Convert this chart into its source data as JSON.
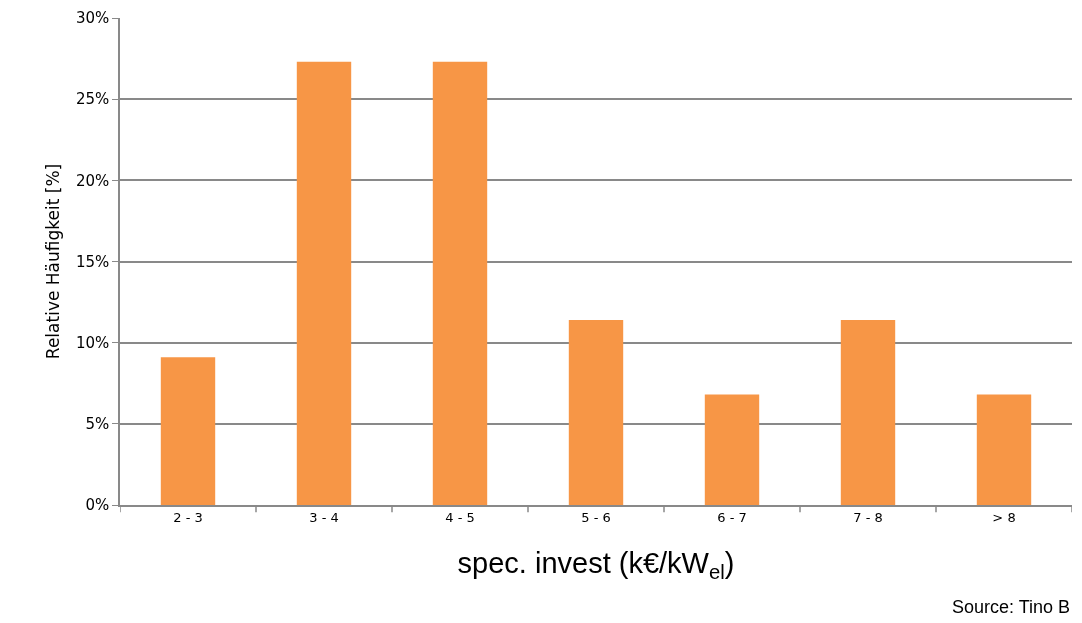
{
  "chart_data": {
    "type": "bar",
    "xlabel": "spec. invest (k€/kW$_{el}$)",
    "ylabel": "Relative Häufigkeit [%]",
    "categories": [
      "2 - 3",
      "3 - 4",
      "4 - 5",
      "5 - 6",
      "6 - 7",
      "7 - 8",
      "> 8"
    ],
    "values": [
      9.1,
      27.3,
      27.3,
      11.4,
      6.8,
      11.4,
      6.8
    ],
    "color": "#f79646",
    "ylim": [
      0,
      30
    ],
    "yticks": [
      {
        "value": 0,
        "label": "0%"
      },
      {
        "value": 5,
        "label": "5%"
      },
      {
        "value": 10,
        "label": "10%"
      },
      {
        "value": 15,
        "label": "15%"
      },
      {
        "value": 20,
        "label": "20%"
      },
      {
        "value": 25,
        "label": "25%"
      },
      {
        "value": 30,
        "label": "30%"
      }
    ],
    "grid": "y",
    "annotations": [
      "Source: Tino B"
    ]
  }
}
